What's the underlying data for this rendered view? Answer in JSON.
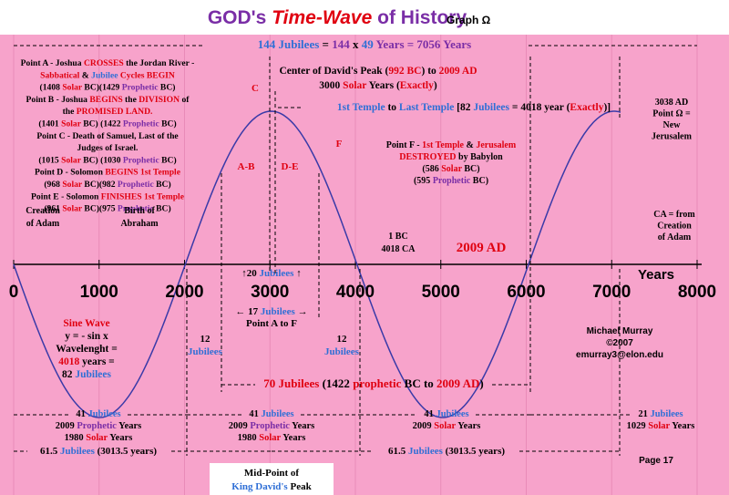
{
  "title": [
    {
      "text": "GOD's ",
      "color": "purple"
    },
    {
      "text": "Time-Wave",
      "color": "red",
      "style": "italic"
    },
    {
      "text": " of History",
      "color": "purple"
    }
  ],
  "subtitle": "Graph Ω",
  "axis_ticks": [
    0,
    1000,
    2000,
    3000,
    4000,
    5000,
    6000,
    7000,
    8000
  ],
  "colors": {
    "black": "#000000",
    "red": "#e00010",
    "blue": "#2f6fd6",
    "purple": "#7a2ea6"
  },
  "blocks": [
    {
      "lines": [
        [
          {
            "text": "144 Jubilees",
            "color": "blue"
          },
          " = ",
          {
            "text": "144",
            "color": "purple"
          },
          " x ",
          {
            "text": "49",
            "color": "blue"
          },
          {
            "text": " Years = 7056 Years",
            "color": "purple"
          }
        ]
      ]
    },
    {
      "lines": [
        [
          "Point A - Joshua ",
          {
            "text": "CROSSES",
            "color": "red"
          },
          " the Jordan River -"
        ],
        [
          {
            "text": "Sabbatical",
            "color": "red"
          },
          " & ",
          {
            "text": "Jubilee",
            "color": "blue"
          },
          {
            "text": " Cycles BEGIN",
            "color": "red"
          }
        ],
        [
          "(1408 ",
          {
            "text": "Solar",
            "color": "red"
          },
          " BC)(1429 ",
          {
            "text": "Prophetic",
            "color": "purple"
          },
          " BC)"
        ],
        [
          "Point B - Joshua ",
          {
            "text": "BEGINS",
            "color": "red"
          },
          " the ",
          {
            "text": "DIVISION",
            "color": "red"
          },
          " of"
        ],
        [
          "the ",
          {
            "text": "PROMISED LAND.",
            "color": "red"
          }
        ],
        [
          "(1401 ",
          {
            "text": "Solar",
            "color": "red"
          },
          " BC) (1422 ",
          {
            "text": "Prophetic",
            "color": "purple"
          },
          " BC)"
        ],
        [
          "Point C - Death of Samuel, Last of the"
        ],
        [
          "Judges of Israel."
        ],
        [
          "(1015 ",
          {
            "text": "Solar",
            "color": "red"
          },
          " BC) (1030 ",
          {
            "text": "Prophetic",
            "color": "purple"
          },
          " BC)"
        ],
        [
          "Point D - Solomon ",
          {
            "text": "BEGINS 1st Temple",
            "color": "red"
          }
        ],
        [
          "(968 ",
          {
            "text": "Solar",
            "color": "red"
          },
          " BC)(982 ",
          {
            "text": "Prophetic",
            "color": "purple"
          },
          " BC)"
        ],
        [
          "Point E - Solomon ",
          {
            "text": "FINISHES 1st Temple",
            "color": "red"
          }
        ],
        [
          "(961 ",
          {
            "text": "Solar",
            "color": "red"
          },
          " BC)(975 ",
          {
            "text": "Prophetic",
            "color": "purple"
          },
          " BC)"
        ]
      ]
    },
    {
      "lines": [
        [
          "Center of David's Peak (",
          {
            "text": "992 BC",
            "color": "red"
          },
          ") to ",
          {
            "text": "2009 AD",
            "color": "red"
          }
        ],
        [
          "3000 ",
          {
            "text": "Solar",
            "color": "red"
          },
          " Years (",
          {
            "text": "Exactly",
            "color": "red"
          },
          ")"
        ]
      ]
    },
    {
      "lines": [
        [
          {
            "text": "1st Temple",
            "color": "blue"
          },
          " to ",
          {
            "text": "Last Temple",
            "color": "blue"
          },
          " [82 ",
          {
            "text": "Jubilees",
            "color": "blue"
          },
          " = 4018 year (",
          {
            "text": "Exactly",
            "color": "red"
          },
          ")]"
        ]
      ]
    },
    {
      "lines": [
        [
          {
            "text": "C",
            "color": "red"
          }
        ]
      ]
    },
    {
      "lines": [
        [
          {
            "text": "A-B",
            "color": "red"
          }
        ]
      ]
    },
    {
      "lines": [
        [
          {
            "text": "D-E",
            "color": "red"
          }
        ]
      ]
    },
    {
      "lines": [
        [
          {
            "text": "F",
            "color": "red"
          }
        ]
      ]
    },
    {
      "lines": [
        [
          "Point F - ",
          {
            "text": "1st Temple",
            "color": "red"
          },
          " & ",
          {
            "text": "Jerusalem",
            "color": "red"
          }
        ],
        [
          {
            "text": "DESTROYED",
            "color": "red"
          },
          " by Babylon"
        ],
        [
          "(586 ",
          {
            "text": "Solar",
            "color": "red"
          },
          " BC)"
        ],
        [
          "(595 ",
          {
            "text": "Prophetic",
            "color": "purple"
          },
          " BC)"
        ]
      ]
    },
    {
      "lines": [
        [
          "3038 AD"
        ],
        [
          "Point Ω ="
        ],
        [
          "New"
        ],
        [
          "Jerusalem"
        ]
      ]
    },
    {
      "lines": [
        [
          "CA = from"
        ],
        [
          "Creation"
        ],
        [
          "of Adam"
        ]
      ]
    },
    {
      "lines": [
        [
          "Creation"
        ],
        [
          "of Adam"
        ]
      ]
    },
    {
      "lines": [
        [
          "Birth of"
        ],
        [
          "Abraham"
        ]
      ]
    },
    {
      "lines": [
        [
          "1 BC"
        ],
        [
          "4018 CA"
        ]
      ]
    },
    {
      "lines": [
        [
          {
            "text": "2009 AD",
            "color": "red"
          }
        ]
      ]
    },
    {
      "lines": [
        [
          "Years"
        ]
      ]
    },
    {
      "lines": [
        [
          "↑20 ",
          {
            "text": "Jubilees",
            "color": "blue"
          },
          " ↑"
        ]
      ]
    },
    {
      "lines": [
        [
          "← 17 ",
          {
            "text": "Jubilees",
            "color": "blue"
          },
          " →"
        ],
        [
          "Point A to F"
        ]
      ]
    },
    {
      "lines": [
        [
          "12"
        ],
        [
          {
            "text": "Jubilees",
            "color": "blue"
          }
        ]
      ]
    },
    {
      "lines": [
        [
          "12"
        ],
        [
          {
            "text": "Jubilees",
            "color": "blue"
          }
        ]
      ]
    },
    {
      "lines": [
        [
          {
            "text": "Sine Wave",
            "color": "red"
          }
        ],
        [
          "y = - sin x"
        ],
        [
          "Wavelenght ="
        ],
        [
          {
            "text": "4018",
            "color": "red"
          },
          " years ="
        ],
        [
          "82 ",
          {
            "text": "Jubilees",
            "color": "blue"
          }
        ]
      ]
    },
    {
      "lines": [
        [
          "Michael Murray"
        ],
        [
          "©2007"
        ],
        [
          "emurray3@elon.edu"
        ]
      ]
    },
    {
      "lines": [
        [
          {
            "text": "70 Jubilees",
            "color": "red"
          },
          " (1422 ",
          {
            "text": "prophetic",
            "color": "red"
          },
          " BC to ",
          {
            "text": "2009 AD",
            "color": "red"
          },
          ")"
        ]
      ]
    },
    {
      "lines": [
        [
          "41 ",
          {
            "text": "Jubilees",
            "color": "blue"
          }
        ],
        [
          "2009 ",
          {
            "text": "Prophetic",
            "color": "purple"
          },
          " Years"
        ],
        [
          "1980 ",
          {
            "text": "Solar",
            "color": "red"
          },
          " Years"
        ]
      ]
    },
    {
      "lines": [
        [
          "41 ",
          {
            "text": "Jubilees",
            "color": "blue"
          }
        ],
        [
          "2009 ",
          {
            "text": "Prophetic",
            "color": "purple"
          },
          " Years"
        ],
        [
          "1980 ",
          {
            "text": "Solar",
            "color": "red"
          },
          " Years"
        ]
      ]
    },
    {
      "lines": [
        [
          "41 ",
          {
            "text": "Jubilees",
            "color": "blue"
          }
        ],
        [
          "2009 ",
          {
            "text": "Solar",
            "color": "red"
          },
          " Years"
        ]
      ]
    },
    {
      "lines": [
        [
          "21 ",
          {
            "text": "Jubilees",
            "color": "blue"
          }
        ],
        [
          "1029 ",
          {
            "text": "Solar",
            "color": "red"
          },
          " Years"
        ]
      ]
    },
    {
      "lines": [
        [
          "61.5 ",
          {
            "text": "Jubilees",
            "color": "blue"
          },
          " (3013.5 years)"
        ]
      ]
    },
    {
      "lines": [
        [
          "61.5 ",
          {
            "text": "Jubilees",
            "color": "blue"
          },
          " (3013.5 years)"
        ]
      ]
    },
    {
      "lines": [
        [
          "Page 17"
        ]
      ]
    },
    {
      "lines": [
        [
          "Mid-Point of"
        ],
        [
          {
            "text": "King David's",
            "color": "blue"
          },
          " Peak"
        ]
      ]
    }
  ]
}
